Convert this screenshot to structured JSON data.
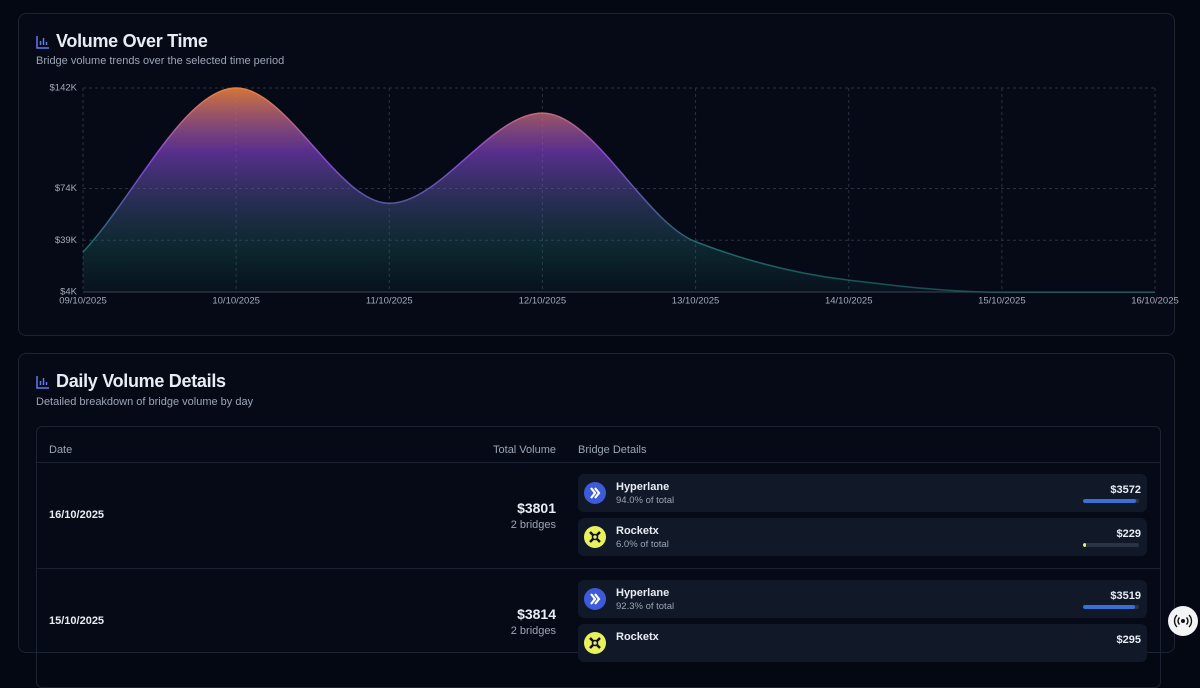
{
  "chart_card": {
    "title": "Volume Over Time",
    "subtitle": "Bridge volume trends over the selected time period"
  },
  "chart_data": {
    "type": "area",
    "categories": [
      "09/10/2025",
      "10/10/2025",
      "11/10/2025",
      "12/10/2025",
      "13/10/2025",
      "14/10/2025",
      "15/10/2025",
      "16/10/2025"
    ],
    "values": [
      31000,
      142000,
      64000,
      125000,
      38000,
      12000,
      3814,
      3801
    ],
    "ylim": [
      4000,
      142000
    ],
    "yticks": [
      {
        "value": 4000,
        "label": "$4K"
      },
      {
        "value": 39000,
        "label": "$39K"
      },
      {
        "value": 74000,
        "label": "$74K"
      },
      {
        "value": 142000,
        "label": "$142K"
      }
    ],
    "grid": true,
    "colors": [
      "#e8813e",
      "#8b47d9",
      "#1d6b6a"
    ]
  },
  "table_card": {
    "title": "Daily Volume Details",
    "subtitle": "Detailed breakdown of bridge volume by day",
    "columns": [
      "Date",
      "Total Volume",
      "Bridge Details"
    ],
    "rows": [
      {
        "date": "16/10/2025",
        "total": "$3801",
        "bridges_count": "2 bridges",
        "bridges": [
          {
            "name": "Hyperlane",
            "share": 94,
            "share_label": "94.0% of total",
            "amount": "$3572",
            "color": "#3b6fd8"
          },
          {
            "name": "Rocketx",
            "share": 6,
            "share_label": "6.0% of total",
            "amount": "$229",
            "color": "#e5f36a"
          }
        ]
      },
      {
        "date": "15/10/2025",
        "total": "$3814",
        "bridges_count": "2 bridges",
        "bridges": [
          {
            "name": "Hyperlane",
            "share": 92.3,
            "share_label": "92.3% of total",
            "amount": "$3519",
            "color": "#3b6fd8"
          },
          {
            "name": "Rocketx",
            "amount": "$295",
            "color": "#e5f36a"
          }
        ]
      }
    ]
  }
}
